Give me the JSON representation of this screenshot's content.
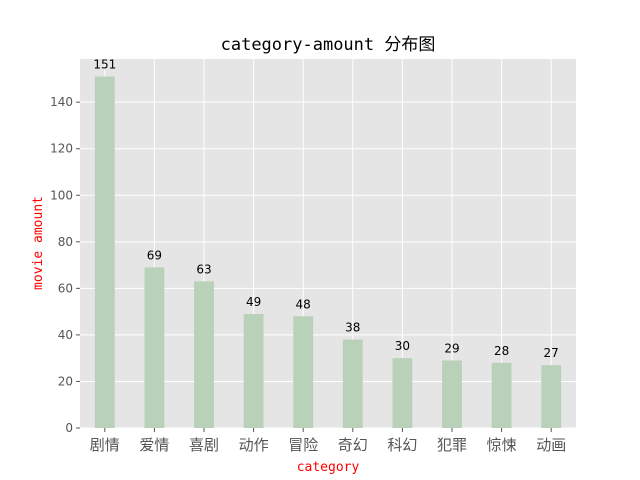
{
  "chart_data": {
    "type": "bar",
    "title": "category-amount 分布图",
    "xlabel": "category",
    "ylabel": "movie amount",
    "categories": [
      "剧情",
      "爱情",
      "喜剧",
      "动作",
      "冒险",
      "奇幻",
      "科幻",
      "犯罪",
      "惊悚",
      "动画"
    ],
    "values": [
      151,
      69,
      63,
      49,
      48,
      38,
      30,
      29,
      28,
      27
    ],
    "ylim": [
      0,
      158.55
    ],
    "yticks": [
      0,
      20,
      40,
      60,
      80,
      100,
      120,
      140
    ],
    "grid": true,
    "colors": {
      "bar": "#b9d1b9",
      "background": "#e5e5e5",
      "grid": "#ffffff",
      "label": "#ff0000"
    }
  }
}
